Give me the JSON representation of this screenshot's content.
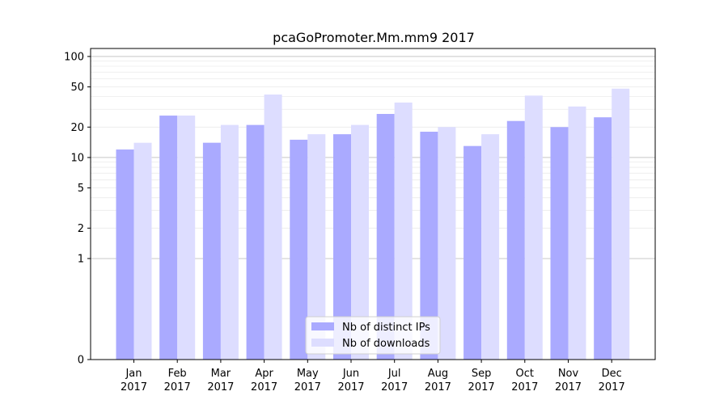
{
  "chart_data": {
    "type": "bar",
    "title": "pcaGoPromoter.Mm.mm9 2017",
    "xlabel": "",
    "ylabel": "",
    "yscale": "symlog",
    "ylim": [
      0,
      120
    ],
    "yticks": [
      0,
      1,
      2,
      5,
      10,
      20,
      50,
      100
    ],
    "categories": [
      [
        "Jan",
        "2017"
      ],
      [
        "Feb",
        "2017"
      ],
      [
        "Mar",
        "2017"
      ],
      [
        "Apr",
        "2017"
      ],
      [
        "May",
        "2017"
      ],
      [
        "Jun",
        "2017"
      ],
      [
        "Jul",
        "2017"
      ],
      [
        "Aug",
        "2017"
      ],
      [
        "Sep",
        "2017"
      ],
      [
        "Oct",
        "2017"
      ],
      [
        "Nov",
        "2017"
      ],
      [
        "Dec",
        "2017"
      ]
    ],
    "series": [
      {
        "name": "Nb of distinct IPs",
        "color": "#aaaaff",
        "values": [
          12,
          26,
          14,
          21,
          15,
          17,
          27,
          18,
          13,
          23,
          20,
          25
        ]
      },
      {
        "name": "Nb of downloads",
        "color": "#ddddff",
        "values": [
          14,
          26,
          21,
          42,
          17,
          21,
          35,
          20,
          17,
          41,
          32,
          48
        ]
      }
    ],
    "grid": true,
    "legend": "bottom-center"
  }
}
